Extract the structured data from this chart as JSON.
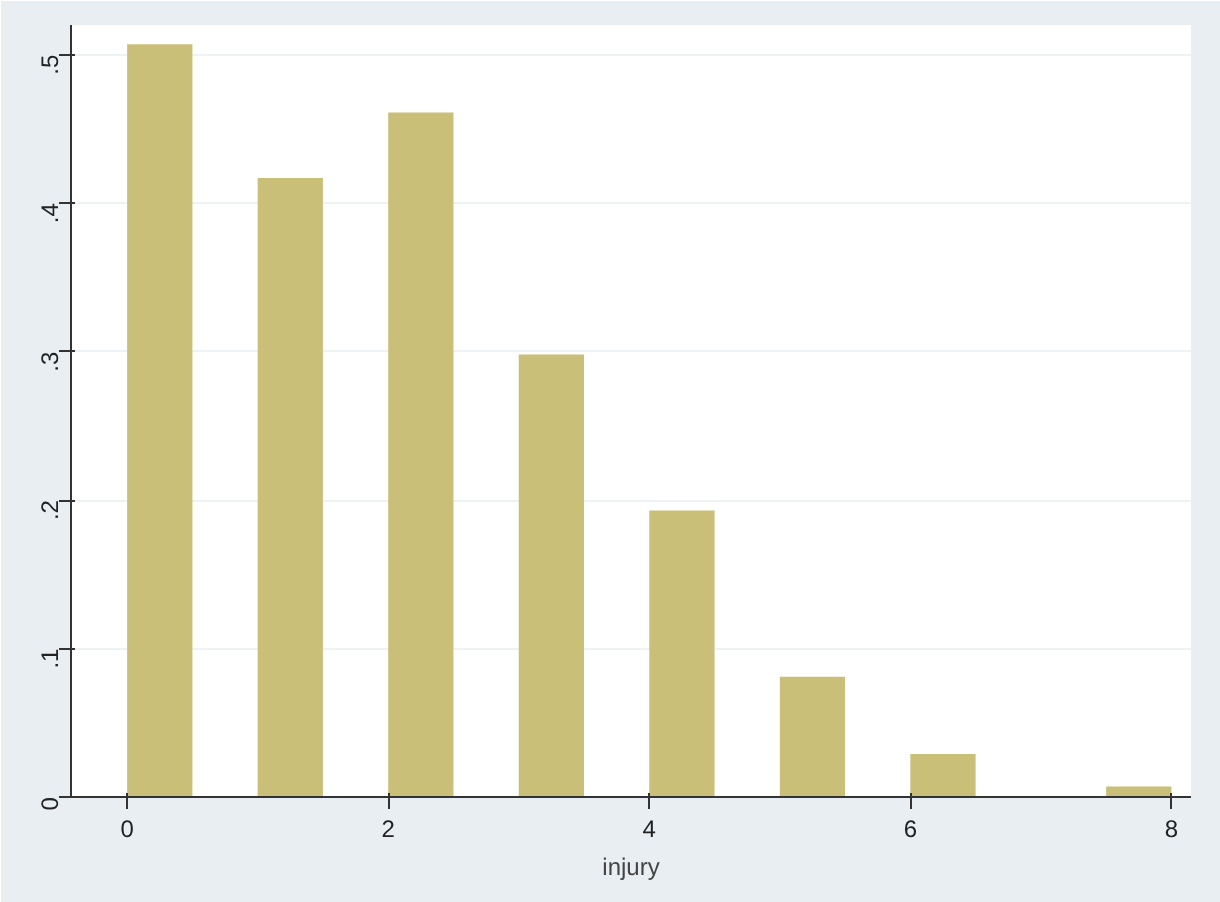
{
  "chart_data": {
    "type": "histogram",
    "xlabel": "injury",
    "bins": [
      0,
      0.5,
      1,
      1.5,
      2,
      2.5,
      3,
      3.5,
      4,
      4.5,
      5,
      5.5,
      6,
      6.5,
      7,
      7.5,
      8
    ],
    "values": [
      0.507,
      0,
      0.417,
      0,
      0.461,
      0,
      0.298,
      0,
      0.193,
      0,
      0.081,
      0,
      0.029,
      0,
      0,
      0.007
    ],
    "color": "#c9bf78",
    "xlim": [
      -0.43,
      8.15
    ],
    "xticks": [
      0,
      2,
      4,
      6,
      8
    ],
    "ylim": [
      0,
      0.52
    ],
    "yticks": [
      0,
      {
        "value": 0.1,
        "label": ".1"
      },
      {
        "value": 0.2,
        "label": ".2"
      },
      {
        "value": 0.3,
        "label": ".3"
      },
      {
        "value": 0.4,
        "label": ".4"
      },
      {
        "value": 0.5,
        "label": ".5"
      }
    ],
    "grid": "y"
  }
}
